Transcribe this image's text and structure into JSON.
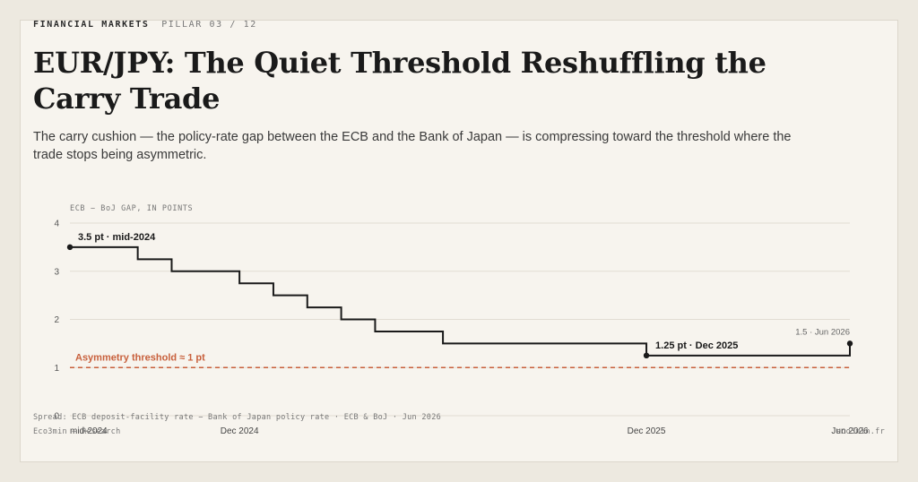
{
  "header": {
    "section": "FINANCIAL MARKETS",
    "pillar": "PILLAR 03 / 12",
    "title": "EUR/JPY: The Quiet Threshold Reshuffling the Carry Trade",
    "subtitle": "The carry cushion — the policy-rate gap between the ECB and the Bank of Japan — is compressing toward the threshold where the trade stops being asymmetric."
  },
  "colors": {
    "line": "#1a1a1a",
    "threshold": "#c8603c",
    "grid": "#e2ddd3",
    "background": "#f7f4ee"
  },
  "chart_data": {
    "type": "line",
    "step": true,
    "ylabel": "ECB − BoJ GAP, IN POINTS",
    "ylim": [
      0,
      4
    ],
    "yticks": [
      0,
      1,
      2,
      3,
      4
    ],
    "x_tick_labels": [
      {
        "label": "mid-2024",
        "month": 0
      },
      {
        "label": "Dec 2024",
        "month": 5
      },
      {
        "label": "Dec 2025",
        "month": 17
      },
      {
        "label": "Jun 2026",
        "month": 23
      }
    ],
    "x_range_months": [
      0,
      23
    ],
    "series": [
      {
        "points": [
          {
            "month": 0,
            "value": 3.5
          },
          {
            "month": 2,
            "value": 3.25
          },
          {
            "month": 3,
            "value": 3.0
          },
          {
            "month": 5,
            "value": 2.75
          },
          {
            "month": 6,
            "value": 2.5
          },
          {
            "month": 7,
            "value": 2.25
          },
          {
            "month": 8,
            "value": 2.0
          },
          {
            "month": 9,
            "value": 1.75
          },
          {
            "month": 11,
            "value": 1.5
          },
          {
            "month": 17,
            "value": 1.25
          },
          {
            "month": 23,
            "value": 1.5
          }
        ]
      }
    ],
    "threshold": {
      "value": 1,
      "label": "Asymmetry threshold ≈ 1 pt"
    },
    "annotations": [
      {
        "label": "3.5 pt · mid-2024",
        "month": 0,
        "value": 3.5,
        "style": "bold"
      },
      {
        "label": "1.25 pt · Dec 2025",
        "month": 17,
        "value": 1.25,
        "style": "bold"
      },
      {
        "label": "1.5 · Jun 2026",
        "month": 23,
        "value": 1.5,
        "style": "light"
      }
    ],
    "grid": true
  },
  "footer": {
    "source": "Spread: ECB deposit-facility rate − Bank of Japan policy rate · ECB & BoJ · Jun 2026",
    "brand": "Eco3min — Research",
    "url": "eco3min.fr"
  }
}
